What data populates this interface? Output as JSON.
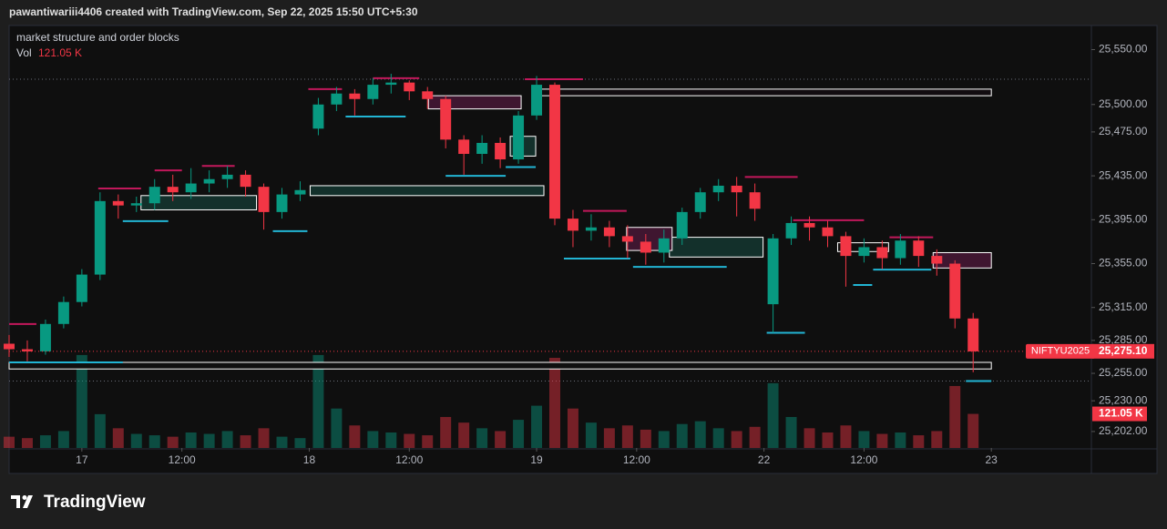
{
  "header": {
    "text": "pawantiwariii4406 created with TradingView.com, Sep 22, 2025 15:50 UTC+5:30"
  },
  "footer": {
    "brand": "TradingView"
  },
  "chart_data": {
    "type": "candlestick",
    "title": "market structure and order blocks",
    "volume_name": "Vol",
    "symbol": "NIFTYU2025",
    "last_price": {
      "value": 25275.1,
      "label": "25,275.10"
    },
    "last_volume": {
      "value": 121.05,
      "label": "121.05 K"
    },
    "up_color": "#089981",
    "down_color": "#f23645",
    "xlim": [
      -8,
      111
    ],
    "xticks": [
      {
        "value": 0,
        "label": "17"
      },
      {
        "value": 11,
        "label": "12:00"
      },
      {
        "value": 25,
        "label": "18"
      },
      {
        "value": 36,
        "label": "12:00"
      },
      {
        "value": 50,
        "label": "19"
      },
      {
        "value": 61,
        "label": "12:00"
      },
      {
        "value": 75,
        "label": "22"
      },
      {
        "value": 86,
        "label": "12:00"
      },
      {
        "value": 100,
        "label": "23"
      }
    ],
    "ylim": [
      25187,
      25572
    ],
    "yticks": [
      {
        "value": 25550,
        "label": "25,550.00"
      },
      {
        "value": 25500,
        "label": "25,500.00"
      },
      {
        "value": 25475,
        "label": "25,475.00"
      },
      {
        "value": 25435,
        "label": "25,435.00"
      },
      {
        "value": 25395,
        "label": "25,395.00"
      },
      {
        "value": 25355,
        "label": "25,355.00"
      },
      {
        "value": 25315,
        "label": "25,315.00"
      },
      {
        "value": 25285,
        "label": "25,285.00"
      },
      {
        "value": 25255,
        "label": "25,255.00"
      },
      {
        "value": 25230,
        "label": "25,230.00"
      },
      {
        "value": 25202,
        "label": "25,202.00"
      }
    ],
    "volume_ylim": [
      0,
      1500
    ],
    "x": [
      -8,
      -6,
      -4,
      -2,
      0,
      2,
      4,
      6,
      8,
      10,
      12,
      14,
      16,
      18,
      20,
      22,
      24,
      26,
      28,
      30,
      32,
      34,
      36,
      38,
      40,
      42,
      44,
      46,
      48,
      50,
      52,
      54,
      56,
      58,
      60,
      62,
      64,
      66,
      68,
      70,
      72,
      74,
      76,
      78,
      80,
      82,
      84,
      86,
      88,
      90,
      92,
      94,
      96,
      98
    ],
    "open": [
      25282,
      25277,
      25275,
      25300,
      25320,
      25345,
      25412,
      25408,
      25410,
      25425,
      25420,
      25428,
      25432,
      25436,
      25425,
      25402,
      25418,
      25478,
      25500,
      25510,
      25505,
      25518,
      25520,
      25512,
      25505,
      25468,
      25455,
      25465,
      25450,
      25490,
      25518,
      25396,
      25385,
      25388,
      25380,
      25375,
      25365,
      25378,
      25402,
      25420,
      25426,
      25420,
      25318,
      25378,
      25392,
      25388,
      25380,
      25362,
      25370,
      25360,
      25376,
      25362,
      25355,
      25305
    ],
    "high": [
      25290,
      25285,
      25304,
      25325,
      25350,
      25420,
      25418,
      25416,
      25432,
      25436,
      25442,
      25440,
      25444,
      25440,
      25428,
      25424,
      25430,
      25506,
      25516,
      25514,
      25524,
      25528,
      25522,
      25516,
      25508,
      25472,
      25472,
      25470,
      25494,
      25526,
      25520,
      25404,
      25400,
      25394,
      25390,
      25382,
      25386,
      25406,
      25424,
      25432,
      25434,
      25428,
      25382,
      25398,
      25398,
      25394,
      25384,
      25378,
      25376,
      25382,
      25380,
      25368,
      25358,
      25310
    ],
    "low": [
      25270,
      25266,
      25272,
      25296,
      25316,
      25340,
      25396,
      25402,
      25404,
      25412,
      25414,
      25420,
      25424,
      25416,
      25386,
      25396,
      25412,
      25472,
      25494,
      25490,
      25500,
      25510,
      25504,
      25496,
      25460,
      25436,
      25446,
      25442,
      25446,
      25486,
      25390,
      25370,
      25376,
      25370,
      25360,
      25354,
      25356,
      25372,
      25396,
      25412,
      25398,
      25394,
      25292,
      25372,
      25376,
      25370,
      25334,
      25356,
      25350,
      25354,
      25352,
      25344,
      25296,
      25256
    ],
    "close": [
      25277,
      25275,
      25300,
      25320,
      25345,
      25412,
      25408,
      25410,
      25425,
      25420,
      25428,
      25432,
      25436,
      25425,
      25402,
      25418,
      25422,
      25500,
      25510,
      25505,
      25518,
      25520,
      25512,
      25505,
      25468,
      25455,
      25465,
      25450,
      25490,
      25518,
      25396,
      25385,
      25388,
      25380,
      25375,
      25365,
      25378,
      25402,
      25420,
      25426,
      25420,
      25405,
      25378,
      25392,
      25388,
      25380,
      25362,
      25370,
      25360,
      25376,
      25362,
      25355,
      25305,
      25275
    ],
    "volume": [
      40,
      35,
      45,
      60,
      330,
      120,
      70,
      50,
      45,
      40,
      55,
      50,
      60,
      45,
      70,
      40,
      35,
      330,
      140,
      80,
      60,
      55,
      50,
      45,
      110,
      90,
      70,
      60,
      100,
      150,
      320,
      140,
      90,
      70,
      80,
      65,
      60,
      85,
      95,
      70,
      60,
      75,
      230,
      110,
      70,
      55,
      80,
      60,
      50,
      55,
      45,
      60,
      220,
      121.05
    ],
    "order_blocks": [
      {
        "x": [
          49.9,
          100
        ],
        "y": [
          25514,
          25508
        ],
        "color": "#120c10",
        "border": "#ffffff"
      },
      {
        "x": [
          38.1,
          48.3
        ],
        "y": [
          25508,
          25496
        ],
        "color": "#3f1630",
        "border": "#ffffff"
      },
      {
        "x": [
          25.1,
          50.8
        ],
        "y": [
          25426,
          25417
        ],
        "color": "#13302b",
        "border": "#ffffff"
      },
      {
        "x": [
          6.5,
          19.2
        ],
        "y": [
          25417,
          25404
        ],
        "color": "#13302b",
        "border": "#ffffff"
      },
      {
        "x": [
          64.6,
          74.9
        ],
        "y": [
          25379,
          25361
        ],
        "color": "#13302b",
        "border": "#ffffff"
      },
      {
        "x": [
          93.6,
          100
        ],
        "y": [
          25365,
          25351
        ],
        "color": "#3f1630",
        "border": "#ffffff"
      },
      {
        "x": [
          59.9,
          64.9
        ],
        "y": [
          25388,
          25367
        ],
        "color": "#3f1630",
        "border": "#ffffff"
      },
      {
        "x": [
          47.1,
          49.9
        ],
        "y": [
          25471,
          25453
        ],
        "color": "#13302b",
        "border": "#ffffff"
      },
      {
        "x": [
          83.1,
          88.7
        ],
        "y": [
          25374,
          25366
        ],
        "color": "#0f0f0f",
        "border": "#ffffff"
      },
      {
        "x": [
          -8,
          100
        ],
        "y": [
          25265,
          25259
        ],
        "color": "#0f0f0f",
        "border": "#ffffff"
      }
    ],
    "levels": [
      {
        "x": [
          4.5,
          9.5
        ],
        "y": 25393.7,
        "color": "#22b5d4"
      },
      {
        "x": [
          21,
          24.8
        ],
        "y": 25384.6,
        "color": "#22b5d4"
      },
      {
        "x": [
          29,
          35.6
        ],
        "y": 25489,
        "color": "#22b5d4"
      },
      {
        "x": [
          40,
          46.6
        ],
        "y": 25435,
        "color": "#22b5d4"
      },
      {
        "x": [
          46.6,
          49.9
        ],
        "y": 25443,
        "color": "#22b5d4"
      },
      {
        "x": [
          53,
          60.3
        ],
        "y": 25359.6,
        "color": "#22b5d4"
      },
      {
        "x": [
          60.6,
          70.9
        ],
        "y": 25352,
        "color": "#22b5d4"
      },
      {
        "x": [
          75.3,
          79.5
        ],
        "y": 25292,
        "color": "#22b5d4"
      },
      {
        "x": [
          84.8,
          86.9
        ],
        "y": 25335.5,
        "color": "#22b5d4"
      },
      {
        "x": [
          87,
          93.4
        ],
        "y": 25349.5,
        "color": "#22b5d4"
      },
      {
        "x": [
          97.2,
          100
        ],
        "y": 25248,
        "color": "#22b5d4"
      },
      {
        "x": [
          -8,
          4.5
        ],
        "y": 25265,
        "color": "#22b5d4"
      },
      {
        "x": [
          -8,
          -5
        ],
        "y": 25300,
        "color": "#c2185b"
      },
      {
        "x": [
          1.8,
          6.5
        ],
        "y": 25423.5,
        "color": "#c2185b"
      },
      {
        "x": [
          8,
          11
        ],
        "y": 25440,
        "color": "#c2185b"
      },
      {
        "x": [
          13.2,
          16.8
        ],
        "y": 25444,
        "color": "#c2185b"
      },
      {
        "x": [
          24.9,
          28.6
        ],
        "y": 25514,
        "color": "#c2185b"
      },
      {
        "x": [
          32,
          37.1
        ],
        "y": 25524,
        "color": "#c2185b"
      },
      {
        "x": [
          48.7,
          55.1
        ],
        "y": 25523,
        "color": "#c2185b"
      },
      {
        "x": [
          55.1,
          59.9
        ],
        "y": 25403,
        "color": "#c2185b"
      },
      {
        "x": [
          72.9,
          78.7
        ],
        "y": 25434,
        "color": "#c2185b"
      },
      {
        "x": [
          78.2,
          86
        ],
        "y": 25394.5,
        "color": "#c2185b"
      },
      {
        "x": [
          88.8,
          93.6
        ],
        "y": 25379,
        "color": "#c2185b"
      }
    ],
    "dotted_levels": [
      25523,
      25248
    ]
  }
}
